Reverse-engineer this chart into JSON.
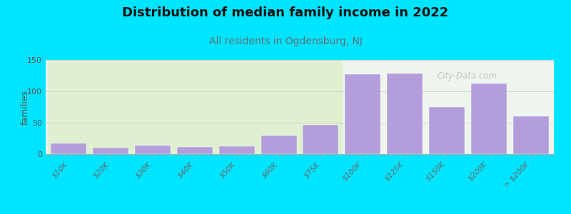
{
  "title": "Distribution of median family income in 2022",
  "subtitle": "All residents in Ogdensburg, NJ",
  "categories": [
    "$10K",
    "$20K",
    "$30K",
    "$40K",
    "$50K",
    "$60K",
    "$75K",
    "$100K",
    "$125K",
    "$150K",
    "$200K",
    "> $200K"
  ],
  "values": [
    17,
    10,
    14,
    11,
    13,
    30,
    47,
    127,
    128,
    75,
    112,
    60
  ],
  "bar_color": "#b39ddb",
  "green_bars_count": 7,
  "background_color": "#00e5ff",
  "plot_bg_left": "#dff0d0",
  "plot_bg_right": "#eef5ee",
  "ylabel": "families",
  "ylim": [
    0,
    150
  ],
  "yticks": [
    0,
    50,
    100,
    150
  ],
  "title_fontsize": 13,
  "subtitle_fontsize": 10,
  "subtitle_color": "#607070",
  "watermark": "City-Data.com"
}
